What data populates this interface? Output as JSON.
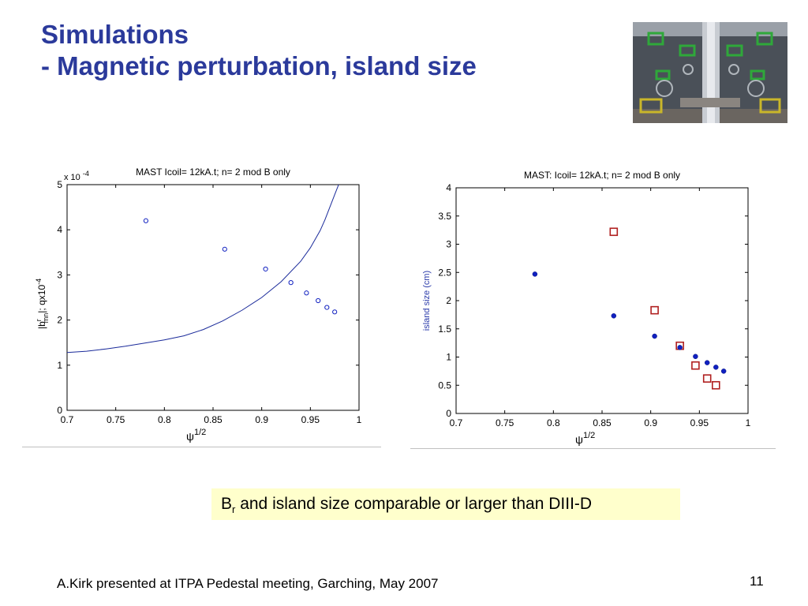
{
  "slide": {
    "title_line1": "Simulations",
    "title_line2": "- Magnetic perturbation, island size",
    "highlight_main": "B",
    "highlight_sub": "r",
    "highlight_rest": " and island size comparable or larger than DIII-D",
    "footer": "A.Kirk presented at ITPA Pedestal meeting, Garching, May 2007",
    "page_number": "11"
  },
  "colors": {
    "title": "#2b3a9b",
    "highlight_bg": "#ffffcc",
    "series_blue": "#1020c0",
    "series_red": "#b02020"
  },
  "chart_data": [
    {
      "type": "scatter",
      "title": "MAST Icoil= 12kA.t; n= 2 mod B only",
      "xlabel": "ψ",
      "xlabel_sup": "1/2",
      "ylabel_parts": [
        "|b",
        "r",
        "mn",
        "|; qx10",
        "-4"
      ],
      "y_multiplier_base": "x 10",
      "y_multiplier_exp": "-4",
      "xlim": [
        0.7,
        1.0
      ],
      "ylim": [
        0,
        5
      ],
      "x_ticks": [
        "0.7",
        "0.75",
        "0.8",
        "0.85",
        "0.9",
        "0.95",
        "1"
      ],
      "y_ticks": [
        "0",
        "1",
        "2",
        "3",
        "4",
        "5"
      ],
      "grid": false,
      "series": [
        {
          "marker": "open-circle",
          "x": [
            0.781,
            0.862,
            0.904,
            0.93,
            0.946,
            0.958,
            0.967,
            0.975
          ],
          "y": [
            4.2,
            3.57,
            3.13,
            2.83,
            2.6,
            2.43,
            2.28,
            2.18
          ]
        },
        {
          "style": "line",
          "x": [
            0.7,
            0.72,
            0.74,
            0.76,
            0.78,
            0.8,
            0.82,
            0.84,
            0.86,
            0.88,
            0.9,
            0.92,
            0.94,
            0.95,
            0.96,
            0.965,
            0.97,
            0.975,
            0.98
          ],
          "y": [
            1.28,
            1.31,
            1.36,
            1.42,
            1.49,
            1.56,
            1.65,
            1.79,
            1.98,
            2.22,
            2.5,
            2.85,
            3.3,
            3.6,
            3.98,
            4.22,
            4.5,
            4.78,
            5.05
          ]
        }
      ]
    },
    {
      "type": "scatter",
      "title": "MAST: Icoil= 12kA.t; n= 2 mod B only",
      "xlabel": "ψ",
      "xlabel_sup": "1/2",
      "ylabel": "island size (cm)",
      "xlim": [
        0.7,
        1.0
      ],
      "ylim": [
        0,
        4
      ],
      "x_ticks": [
        "0.7",
        "0.75",
        "0.8",
        "0.85",
        "0.9",
        "0.95",
        "1"
      ],
      "y_ticks": [
        "0",
        "0.5",
        "1",
        "1.5",
        "2",
        "2.5",
        "3",
        "3.5",
        "4"
      ],
      "grid": false,
      "series": [
        {
          "marker": "filled-dot",
          "x": [
            0.781,
            0.862,
            0.904,
            0.93,
            0.946,
            0.958,
            0.967,
            0.975
          ],
          "y": [
            2.47,
            1.73,
            1.37,
            1.17,
            1.01,
            0.9,
            0.82,
            0.75
          ]
        },
        {
          "marker": "open-square",
          "x": [
            0.862,
            0.904,
            0.93,
            0.946,
            0.958,
            0.967
          ],
          "y": [
            3.22,
            1.83,
            1.2,
            0.85,
            0.62,
            0.5
          ]
        }
      ]
    }
  ]
}
